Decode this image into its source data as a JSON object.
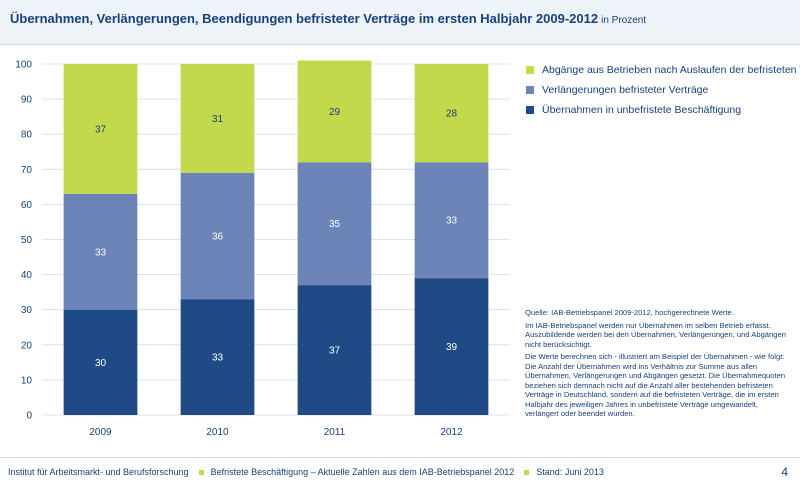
{
  "header": {
    "title": "Übernahmen, Verlängerungen, Beendigungen befristeter Verträge im ersten Halbjahr 2009-2012",
    "unit": "in Prozent"
  },
  "chart_data": {
    "type": "bar",
    "stacked": true,
    "categories": [
      "2009",
      "2010",
      "2011",
      "2012"
    ],
    "series": [
      {
        "name": "Übernahmen in unbefristete Beschäftigung",
        "values": [
          30,
          33,
          37,
          39
        ],
        "labels": [
          "30",
          "33",
          "37",
          "39"
        ],
        "color": "#1f4a86"
      },
      {
        "name": "Verlängerungen befristeter Verträge",
        "values": [
          33,
          36,
          35,
          33
        ],
        "labels": [
          "33",
          "36",
          "35",
          "33"
        ],
        "color": "#6c84b8"
      },
      {
        "name": "Abgänge aus Betrieben nach Auslaufen der befristeten Verträge",
        "values": [
          37,
          31,
          29,
          28
        ],
        "labels": [
          "37",
          "31",
          "29",
          "28"
        ],
        "color": "#c3d84b"
      }
    ],
    "ylim": [
      0,
      100
    ],
    "yticks": [
      0,
      10,
      20,
      30,
      40,
      50,
      60,
      70,
      80,
      90,
      100
    ],
    "grid": true,
    "legend_position": "top-right",
    "legend_order": [
      "Abgänge aus Betrieben nach Auslaufen der befristeten Verträge",
      "Verlängerungen befristeter Verträge",
      "Übernahmen in unbefristete Beschäftigung"
    ]
  },
  "notes": {
    "source": "Quelle: IAB-Betriebspanel 2009-2012, hochgerechnete Werte.",
    "p1": "Im IAB-Betriebspanel werden nur Übernahmen im selben Betrieb erfasst. Auszubildende werden bei den Übernahmen, Verlängerungen, und Abgängen nicht berücksichtigt.",
    "p2": "Die Werte berechnen sich - illustriert am Beispiel der Übernahmen - wie folgt: Die Anzahl der Übernahmen wird ins Verhältnis zur Summe aus allen Übernahmen, Verlängerungen und Abgängen gesetzt. Die Übernahmequoten beziehen sich demnach nicht auf die Anzahl aller bestehenden befristeten Verträge in Deutschland, sondern auf die befristeten Verträge, die im ersten Halbjahr des jeweiligen Jahres in unbefristete Verträge umgewandelt, verlängert oder beendet wurden."
  },
  "footer": {
    "institute": "Institut für Arbeitsmarkt- und Berufsforschung",
    "publication": "Befristete Beschäftigung – Aktuelle Zahlen aus dem IAB-Betriebspanel 2012",
    "date": "Stand: Juni 2013",
    "page": "4"
  },
  "colors": {
    "accent": "#17417c",
    "gridline": "#d3dce9",
    "bullet": "#c3d84b"
  }
}
